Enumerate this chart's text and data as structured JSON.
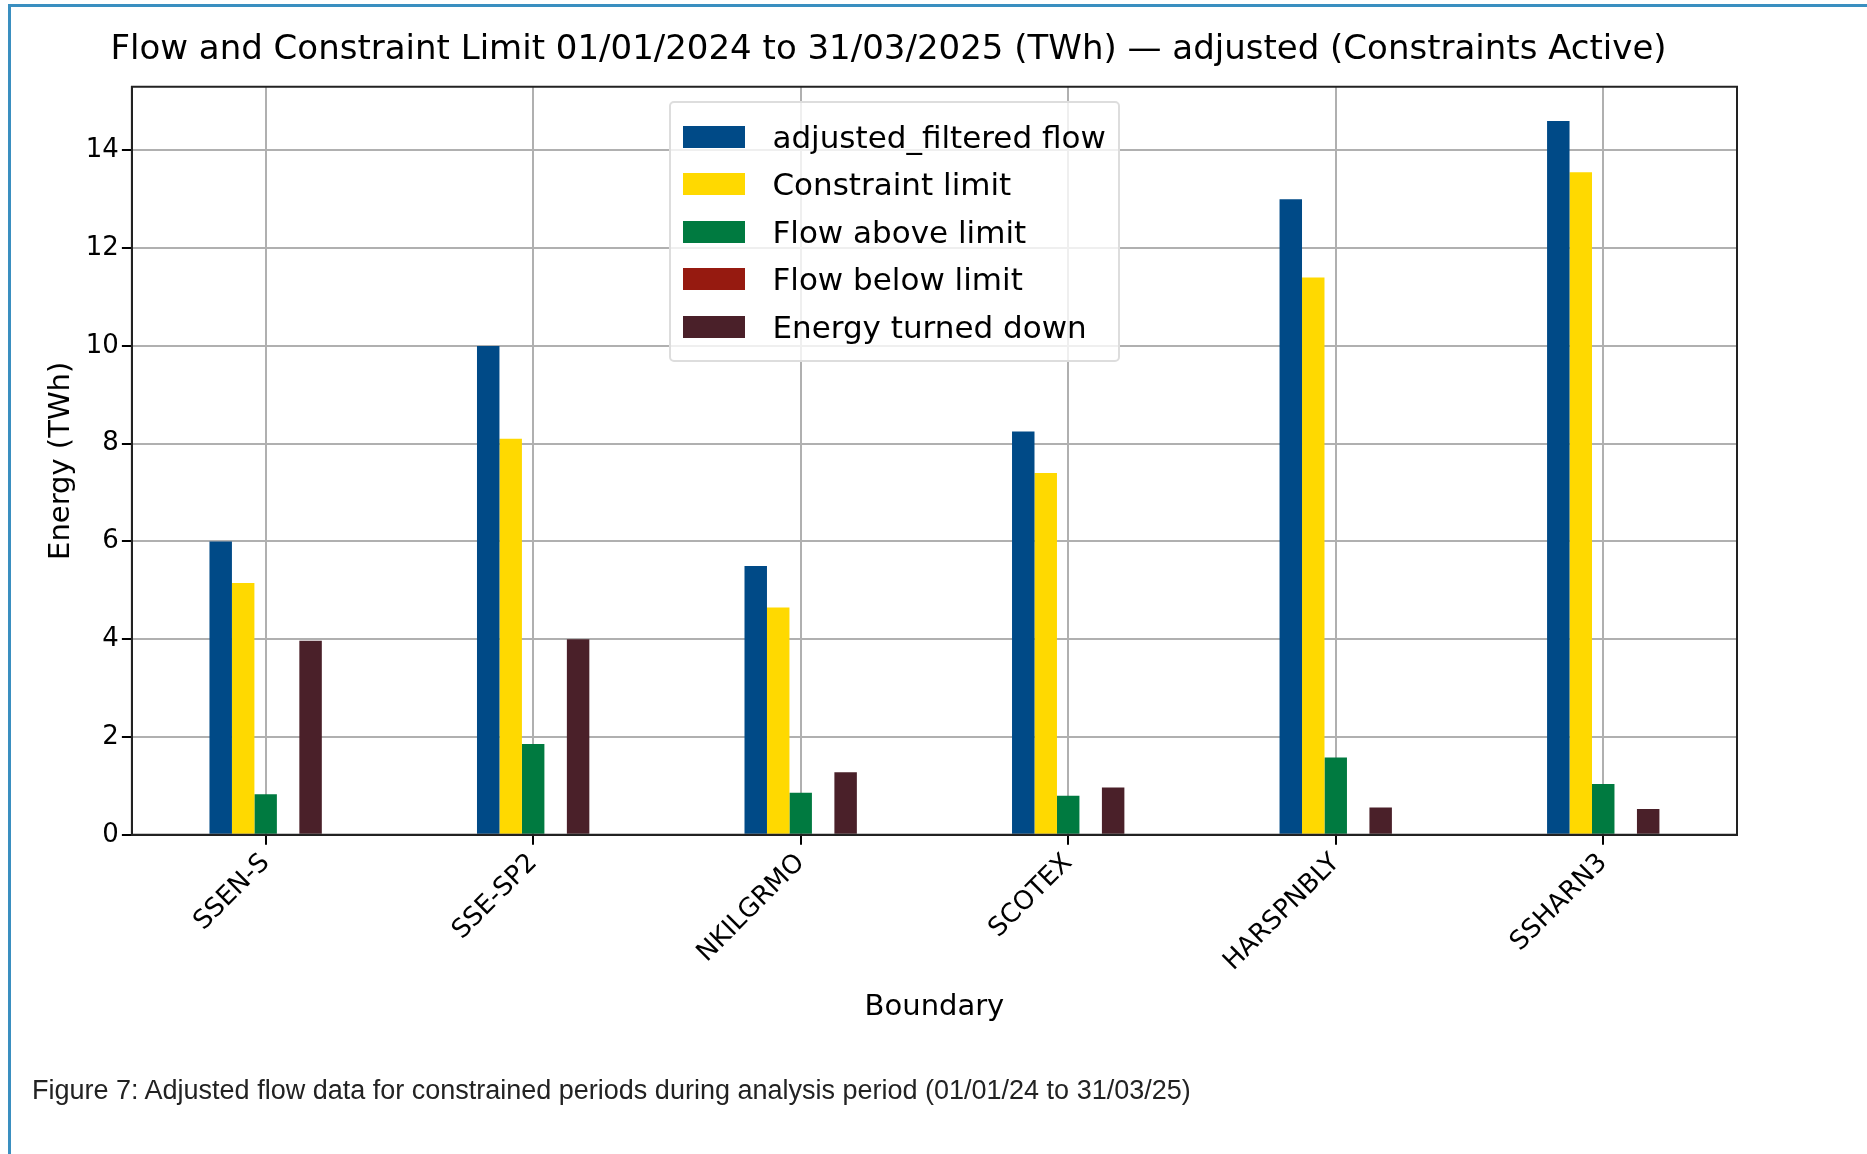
{
  "chart_data": {
    "type": "bar",
    "title": "Flow and Constraint Limit 01/01/2024 to 31/03/2025 (TWh) — adjusted (Constraints Active)",
    "xlabel": "Boundary",
    "ylabel": "Energy (TWh)",
    "categories": [
      "SSEN-S",
      "SSE-SP2",
      "NKILGRMO",
      "SCOTEX",
      "HARSPNBLY",
      "SSHARN3"
    ],
    "series": [
      {
        "name": "adjusted_filtered flow",
        "color": "#004a87",
        "values": [
          6.0,
          10.0,
          5.5,
          8.25,
          13.0,
          14.6
        ]
      },
      {
        "name": "Constraint limit",
        "color": "#ffd900",
        "values": [
          5.15,
          8.1,
          4.65,
          7.4,
          11.4,
          13.55
        ]
      },
      {
        "name": "Flow above limit",
        "color": "#007a40",
        "values": [
          0.83,
          1.86,
          0.86,
          0.8,
          1.58,
          1.04
        ]
      },
      {
        "name": "Flow below limit",
        "color": "#961a10",
        "values": [
          0,
          0,
          0,
          0,
          0,
          0
        ]
      },
      {
        "name": "Energy turned down",
        "color": "#4a2029",
        "values": [
          3.97,
          4.0,
          1.28,
          0.97,
          0.56,
          0.53
        ]
      }
    ],
    "ylim": [
      0,
      15.3
    ],
    "yticks": [
      0,
      2,
      4,
      6,
      8,
      10,
      12,
      14
    ],
    "grid": true,
    "legend": "top",
    "annotations": [
      "Figure 7: Adjusted flow data for constrained periods during analysis period (01/01/24 to 31/03/25)"
    ]
  }
}
